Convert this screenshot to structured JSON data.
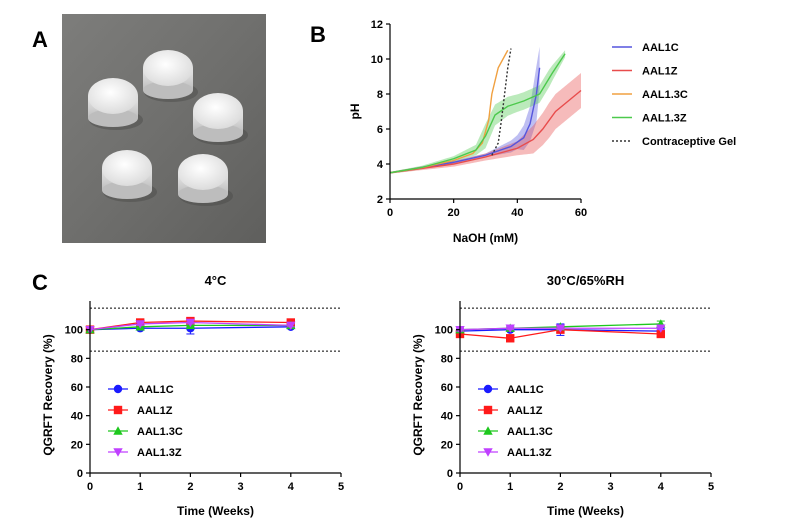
{
  "panels": {
    "a": "A",
    "b": "B",
    "c": "C"
  },
  "colors": {
    "AAL1C": "#5555dd",
    "AAL1Z": "#e84c4c",
    "AAL1.3C": "#f0a040",
    "AAL1.3Z": "#4cc94c",
    "gel": "#333333",
    "C_AAL1C": "#1a1aff",
    "C_AAL1Z": "#ff1a1a",
    "C_AAL1.3C": "#1ec81e",
    "C_AAL1.3Z": "#c040ff"
  },
  "photo": {
    "description_icon": "tablet-photo"
  },
  "chart_data": [
    {
      "id": "titration",
      "type": "line",
      "title": "",
      "xlabel": "NaOH (mM)",
      "ylabel": "pH",
      "xlim": [
        0,
        60
      ],
      "ylim": [
        2,
        12
      ],
      "xticks": [
        "0",
        "20",
        "40",
        "60"
      ],
      "yticks": [
        "2",
        "4",
        "6",
        "8",
        "10",
        "12"
      ],
      "legend_position": "right",
      "series": [
        {
          "name": "AAL1C",
          "style": "solid",
          "band": true,
          "points": [
            [
              0,
              3.5
            ],
            [
              10,
              3.8
            ],
            [
              20,
              4.1
            ],
            [
              30,
              4.5
            ],
            [
              38,
              5.0
            ],
            [
              42,
              5.5
            ],
            [
              44,
              6.3
            ],
            [
              46,
              8.0
            ],
            [
              47,
              9.5
            ]
          ],
          "band_width": [
            [
              0,
              0.05
            ],
            [
              30,
              0.1
            ],
            [
              40,
              0.4
            ],
            [
              44,
              1.0
            ],
            [
              46,
              1.6
            ],
            [
              47,
              1.2
            ]
          ]
        },
        {
          "name": "AAL1Z",
          "style": "solid",
          "band": true,
          "points": [
            [
              0,
              3.5
            ],
            [
              10,
              3.75
            ],
            [
              20,
              4.0
            ],
            [
              30,
              4.4
            ],
            [
              40,
              4.9
            ],
            [
              45,
              5.4
            ],
            [
              48,
              6.0
            ],
            [
              52,
              7.0
            ],
            [
              56,
              7.6
            ],
            [
              60,
              8.2
            ]
          ],
          "band_width": [
            [
              0,
              0.05
            ],
            [
              30,
              0.2
            ],
            [
              40,
              0.4
            ],
            [
              45,
              0.8
            ],
            [
              50,
              1.0
            ],
            [
              55,
              1.0
            ],
            [
              60,
              1.0
            ]
          ]
        },
        {
          "name": "AAL1.3C",
          "style": "solid",
          "band": false,
          "points": [
            [
              0,
              3.5
            ],
            [
              10,
              3.8
            ],
            [
              20,
              4.2
            ],
            [
              26,
              4.6
            ],
            [
              29,
              5.2
            ],
            [
              31,
              6.5
            ],
            [
              32,
              8.0
            ],
            [
              34,
              9.5
            ],
            [
              37,
              10.5
            ]
          ]
        },
        {
          "name": "AAL1.3Z",
          "style": "solid",
          "band": true,
          "points": [
            [
              0,
              3.5
            ],
            [
              10,
              3.8
            ],
            [
              20,
              4.3
            ],
            [
              27,
              4.8
            ],
            [
              30,
              5.6
            ],
            [
              33,
              6.8
            ],
            [
              37,
              7.3
            ],
            [
              42,
              7.6
            ],
            [
              47,
              8.0
            ],
            [
              51,
              9.2
            ],
            [
              55,
              10.3
            ]
          ],
          "band_width": [
            [
              0,
              0.05
            ],
            [
              20,
              0.15
            ],
            [
              27,
              0.3
            ],
            [
              30,
              0.7
            ],
            [
              33,
              0.6
            ],
            [
              40,
              0.5
            ],
            [
              50,
              0.5
            ],
            [
              55,
              0.2
            ]
          ]
        },
        {
          "name": "Contraceptive Gel",
          "style": "dashed",
          "band": false,
          "points": [
            [
              32,
              4.5
            ],
            [
              34,
              5.2
            ],
            [
              35,
              6.5
            ],
            [
              36,
              8.0
            ],
            [
              37,
              9.5
            ],
            [
              38,
              10.6
            ]
          ]
        }
      ]
    },
    {
      "id": "stability-4C",
      "type": "line",
      "title": "4°C",
      "xlabel": "Time (Weeks)",
      "ylabel": "QGRFT Recovery (%)",
      "xlim": [
        0,
        5
      ],
      "ylim": [
        0,
        120
      ],
      "xticks": [
        "0",
        "1",
        "2",
        "3",
        "4",
        "5"
      ],
      "yticks": [
        "0",
        "20",
        "40",
        "60",
        "80",
        "100"
      ],
      "limits": [
        85,
        115
      ],
      "legend_position": "bottom-left",
      "series": [
        {
          "name": "AAL1C",
          "marker": "circle",
          "x": [
            0,
            1,
            2,
            4
          ],
          "y": [
            100,
            101,
            101,
            102
          ],
          "err": [
            0,
            1,
            4,
            1
          ]
        },
        {
          "name": "AAL1Z",
          "marker": "square",
          "x": [
            0,
            1,
            2,
            4
          ],
          "y": [
            100,
            105,
            106,
            105
          ],
          "err": [
            0,
            1,
            2,
            1
          ]
        },
        {
          "name": "AAL1.3C",
          "marker": "triangle-up",
          "x": [
            0,
            1,
            2,
            4
          ],
          "y": [
            100,
            102,
            103,
            103
          ],
          "err": [
            0,
            1,
            1,
            1
          ]
        },
        {
          "name": "AAL1.3Z",
          "marker": "triangle-down",
          "x": [
            0,
            1,
            2,
            4
          ],
          "y": [
            100,
            104,
            105,
            103
          ],
          "err": [
            0,
            1,
            1,
            1
          ]
        }
      ]
    },
    {
      "id": "stability-30C",
      "type": "line",
      "title": "30°C/65%RH",
      "xlabel": "Time (Weeks)",
      "ylabel": "QGRFT Recovery (%)",
      "xlim": [
        0,
        5
      ],
      "ylim": [
        0,
        120
      ],
      "xticks": [
        "0",
        "1",
        "2",
        "3",
        "4",
        "5"
      ],
      "yticks": [
        "0",
        "20",
        "40",
        "60",
        "80",
        "100"
      ],
      "limits": [
        85,
        115
      ],
      "legend_position": "bottom-left",
      "series": [
        {
          "name": "AAL1C",
          "marker": "circle",
          "x": [
            0,
            1,
            2,
            4
          ],
          "y": [
            99,
            100,
            100,
            99
          ],
          "err": [
            1,
            1,
            4,
            2
          ]
        },
        {
          "name": "AAL1Z",
          "marker": "square",
          "x": [
            0,
            1,
            2,
            4
          ],
          "y": [
            97,
            94,
            100,
            97
          ],
          "err": [
            1,
            2,
            2,
            2
          ]
        },
        {
          "name": "AAL1.3C",
          "marker": "triangle-up",
          "x": [
            0,
            1,
            2,
            4
          ],
          "y": [
            100,
            101,
            102,
            104
          ],
          "err": [
            1,
            1,
            1,
            2
          ]
        },
        {
          "name": "AAL1.3Z",
          "marker": "triangle-down",
          "x": [
            0,
            1,
            2,
            4
          ],
          "y": [
            100,
            101,
            101,
            101
          ],
          "err": [
            1,
            1,
            1,
            1
          ]
        }
      ]
    }
  ]
}
